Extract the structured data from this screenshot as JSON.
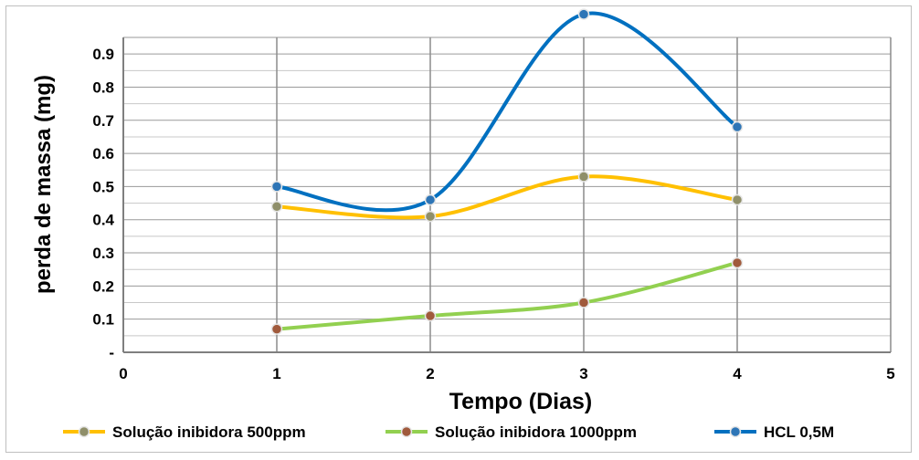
{
  "chart_data": {
    "type": "line",
    "xlabel": "Tempo (Dias)",
    "ylabel": "perda de massa (mg)",
    "xlim": [
      0,
      5
    ],
    "ylim": [
      0,
      0.95
    ],
    "x_ticks": [
      "0",
      "1",
      "2",
      "3",
      "4",
      "5"
    ],
    "y_ticks": [
      {
        "value": 0,
        "label": "-"
      },
      {
        "value": 0.1,
        "label": "0.1"
      },
      {
        "value": 0.2,
        "label": "0.2"
      },
      {
        "value": 0.3,
        "label": "0.3"
      },
      {
        "value": 0.4,
        "label": "0.4"
      },
      {
        "value": 0.5,
        "label": "0.5"
      },
      {
        "value": 0.6,
        "label": "0.6"
      },
      {
        "value": 0.7,
        "label": "0.7"
      },
      {
        "value": 0.8,
        "label": "0.8"
      },
      {
        "value": 0.9,
        "label": "0.9"
      }
    ],
    "grid": true,
    "smooth": true,
    "legend_position": "bottom",
    "x": [
      1,
      2,
      3,
      4
    ],
    "series": [
      {
        "name": "Solução inibidora 500ppm",
        "color": "#ffc000",
        "marker_color": "#8f8f6a",
        "values": [
          0.44,
          0.41,
          0.53,
          0.46
        ]
      },
      {
        "name": "Solução inibidora 1000ppm",
        "color": "#92d050",
        "marker_color": "#a05a3c",
        "values": [
          0.07,
          0.11,
          0.15,
          0.27
        ]
      },
      {
        "name": "HCL 0,5M",
        "color": "#0070c0",
        "marker_color": "#2e75b6",
        "values": [
          0.5,
          0.46,
          1.02,
          0.68
        ]
      }
    ]
  }
}
